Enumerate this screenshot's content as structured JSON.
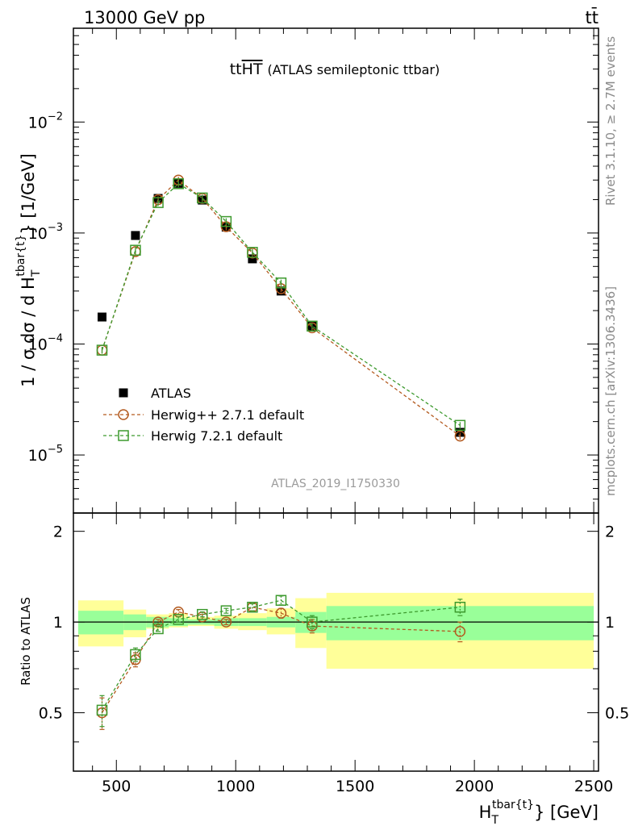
{
  "header": {
    "left": "13000 GeV pp",
    "right": "tt̄"
  },
  "side_labels": {
    "rivet": "Rivet 3.1.10, ≥ 2.7M events",
    "mcplots": "mcplots.cern.ch [arXiv:1306.3436]"
  },
  "watermark": "ATLAS_2019_I1750330",
  "chart_data": [
    {
      "type": "scatter",
      "title_main": "tt",
      "title_over": "HT",
      "title_sub": "(ATLAS semileptonic ttbar)",
      "ylabel_main": "1 / σ dσ / d H",
      "ylabel_sub": "T",
      "ylabel_sup": "tbar{t}",
      "ylabel_unit": "} [1/GeV]",
      "yscale": "log",
      "ylim": [
        3e-06,
        0.07
      ],
      "xlim": [
        320,
        2520
      ],
      "yticks": [
        {
          "value": 1e-05,
          "base": "10",
          "exp": "−5"
        },
        {
          "value": 0.0001,
          "base": "10",
          "exp": "−4"
        },
        {
          "value": 0.001,
          "base": "10",
          "exp": "−3"
        },
        {
          "value": 0.01,
          "base": "10",
          "exp": "−2"
        }
      ],
      "legend_position": "middle-left",
      "x": [
        440,
        580,
        675,
        760,
        860,
        960,
        1070,
        1190,
        1320,
        1940
      ],
      "series": [
        {
          "name": "ATLAS",
          "marker": "filled-square",
          "color": "#000000",
          "values": [
            0.000175,
            0.00095,
            0.00205,
            0.0028,
            0.00198,
            0.00113,
            0.000585,
            0.0003,
            0.000145,
            1.6e-05
          ]
        },
        {
          "name": "Herwig++ 2.7.1 default",
          "marker": "open-circle",
          "color": "#b35a1f",
          "values": [
            8.8e-05,
            0.00068,
            0.002,
            0.003,
            0.00205,
            0.00114,
            0.00066,
            0.000315,
            0.00014,
            1.48e-05
          ]
        },
        {
          "name": "Herwig 7.2.1 default",
          "marker": "open-square",
          "color": "#3d9a2e",
          "values": [
            8.8e-05,
            0.0007,
            0.00188,
            0.00278,
            0.00207,
            0.00127,
            0.00067,
            0.000355,
            0.000145,
            1.85e-05
          ]
        }
      ]
    },
    {
      "type": "scatter",
      "ylabel": "Ratio to ATLAS",
      "xlabel_main": "H",
      "xlabel_sub": "T",
      "xlabel_sup": "tbar{t}",
      "xlabel_unit": "} [GeV]",
      "ylim": [
        0.32,
        2.3
      ],
      "xlim": [
        320,
        2520
      ],
      "xticks": [
        "500",
        "1000",
        "1500",
        "2000",
        "2500"
      ],
      "yticks": [
        "0.5",
        "1",
        "2"
      ],
      "reference_line": 1,
      "bands": [
        {
          "x0": 340,
          "x1": 530,
          "inner": [
            0.91,
            1.09
          ],
          "outer": [
            0.83,
            1.18
          ]
        },
        {
          "x0": 530,
          "x1": 625,
          "inner": [
            0.94,
            1.06
          ],
          "outer": [
            0.89,
            1.1
          ]
        },
        {
          "x0": 625,
          "x1": 720,
          "inner": [
            0.96,
            1.04
          ],
          "outer": [
            0.95,
            1.06
          ]
        },
        {
          "x0": 720,
          "x1": 800,
          "inner": [
            0.97,
            1.03
          ],
          "outer": [
            0.96,
            1.07
          ]
        },
        {
          "x0": 800,
          "x1": 910,
          "inner": [
            0.98,
            1.02
          ],
          "outer": [
            0.97,
            1.04
          ]
        },
        {
          "x0": 910,
          "x1": 1010,
          "inner": [
            0.97,
            1.03
          ],
          "outer": [
            0.95,
            1.05
          ]
        },
        {
          "x0": 1010,
          "x1": 1130,
          "inner": [
            0.97,
            1.03
          ],
          "outer": [
            0.94,
            1.07
          ]
        },
        {
          "x0": 1130,
          "x1": 1250,
          "inner": [
            0.96,
            1.04
          ],
          "outer": [
            0.91,
            1.11
          ]
        },
        {
          "x0": 1250,
          "x1": 1380,
          "inner": [
            0.92,
            1.08
          ],
          "outer": [
            0.82,
            1.2
          ]
        },
        {
          "x0": 1380,
          "x1": 2500,
          "inner": [
            0.87,
            1.13
          ],
          "outer": [
            0.7,
            1.25
          ]
        }
      ],
      "x": [
        440,
        580,
        675,
        760,
        860,
        960,
        1070,
        1190,
        1320,
        1940
      ],
      "series": [
        {
          "name": "Herwig++ 2.7.1 default",
          "marker": "open-circle",
          "color": "#b35a1f",
          "values": [
            0.5,
            0.75,
            1.0,
            1.08,
            1.04,
            1.0,
            1.12,
            1.07,
            0.97,
            0.93
          ],
          "errors": [
            0.06,
            0.04,
            0.02,
            0.02,
            0.02,
            0.02,
            0.03,
            0.04,
            0.05,
            0.07
          ]
        },
        {
          "name": "Herwig 7.2.1 default",
          "marker": "open-square",
          "color": "#3d9a2e",
          "values": [
            0.51,
            0.78,
            0.95,
            1.02,
            1.06,
            1.09,
            1.12,
            1.18,
            1.0,
            1.12
          ],
          "errors": [
            0.06,
            0.04,
            0.02,
            0.02,
            0.02,
            0.02,
            0.03,
            0.04,
            0.05,
            0.07
          ]
        }
      ]
    }
  ]
}
